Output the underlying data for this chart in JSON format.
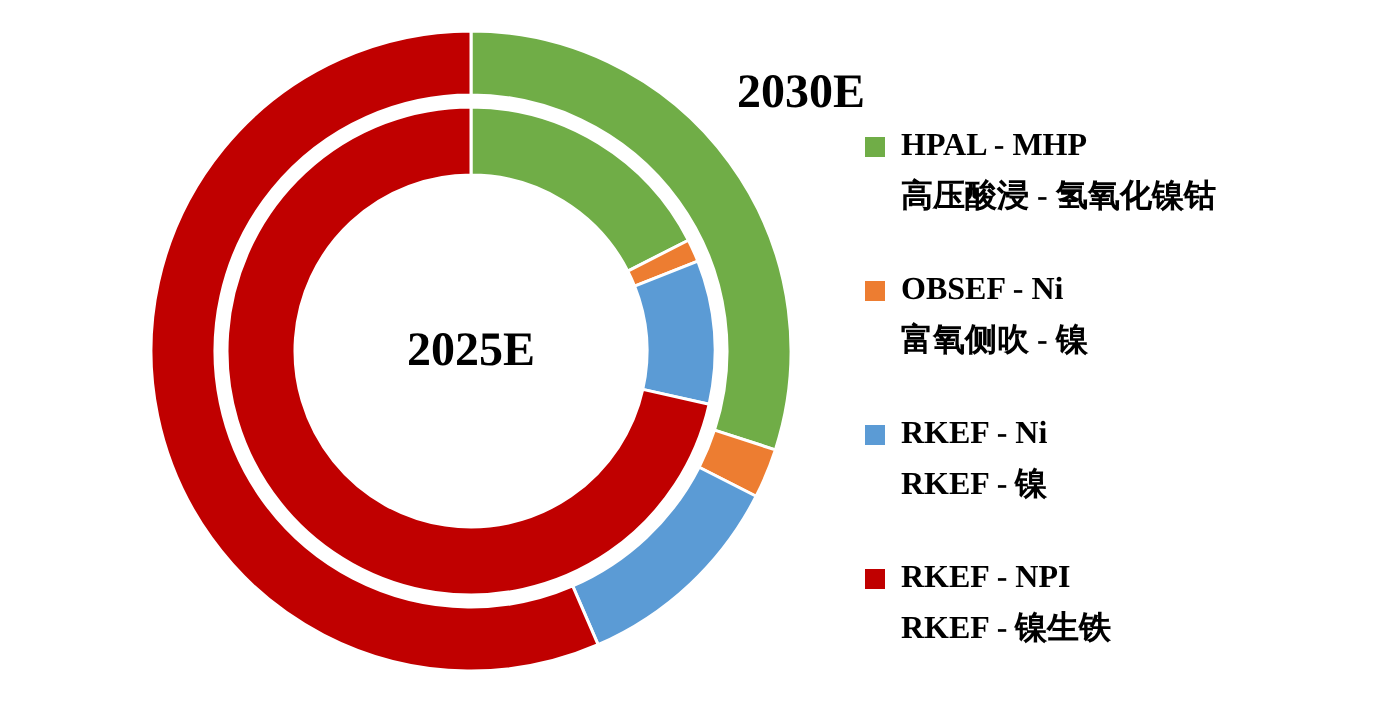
{
  "chart_data": {
    "type": "donut",
    "categories": [
      "HPAL - MHP\n高压酸浸 - 氢氧化镍钴",
      "OBSEF - Ni\n富氧侧吹 - 镍",
      "RKEF - Ni\nRKEF - 镍",
      "RKEF - NPI\nRKEF - 镍生铁"
    ],
    "colors": [
      "#70ad47",
      "#ed7d31",
      "#5b9bd5",
      "#c00000"
    ],
    "legend": "right",
    "series": [
      {
        "name": "2030E",
        "values": [
          30,
          2.5,
          11,
          56.5
        ]
      },
      {
        "name": "2025E",
        "values": [
          17.5,
          1.5,
          9.5,
          71.5
        ]
      }
    ]
  }
}
